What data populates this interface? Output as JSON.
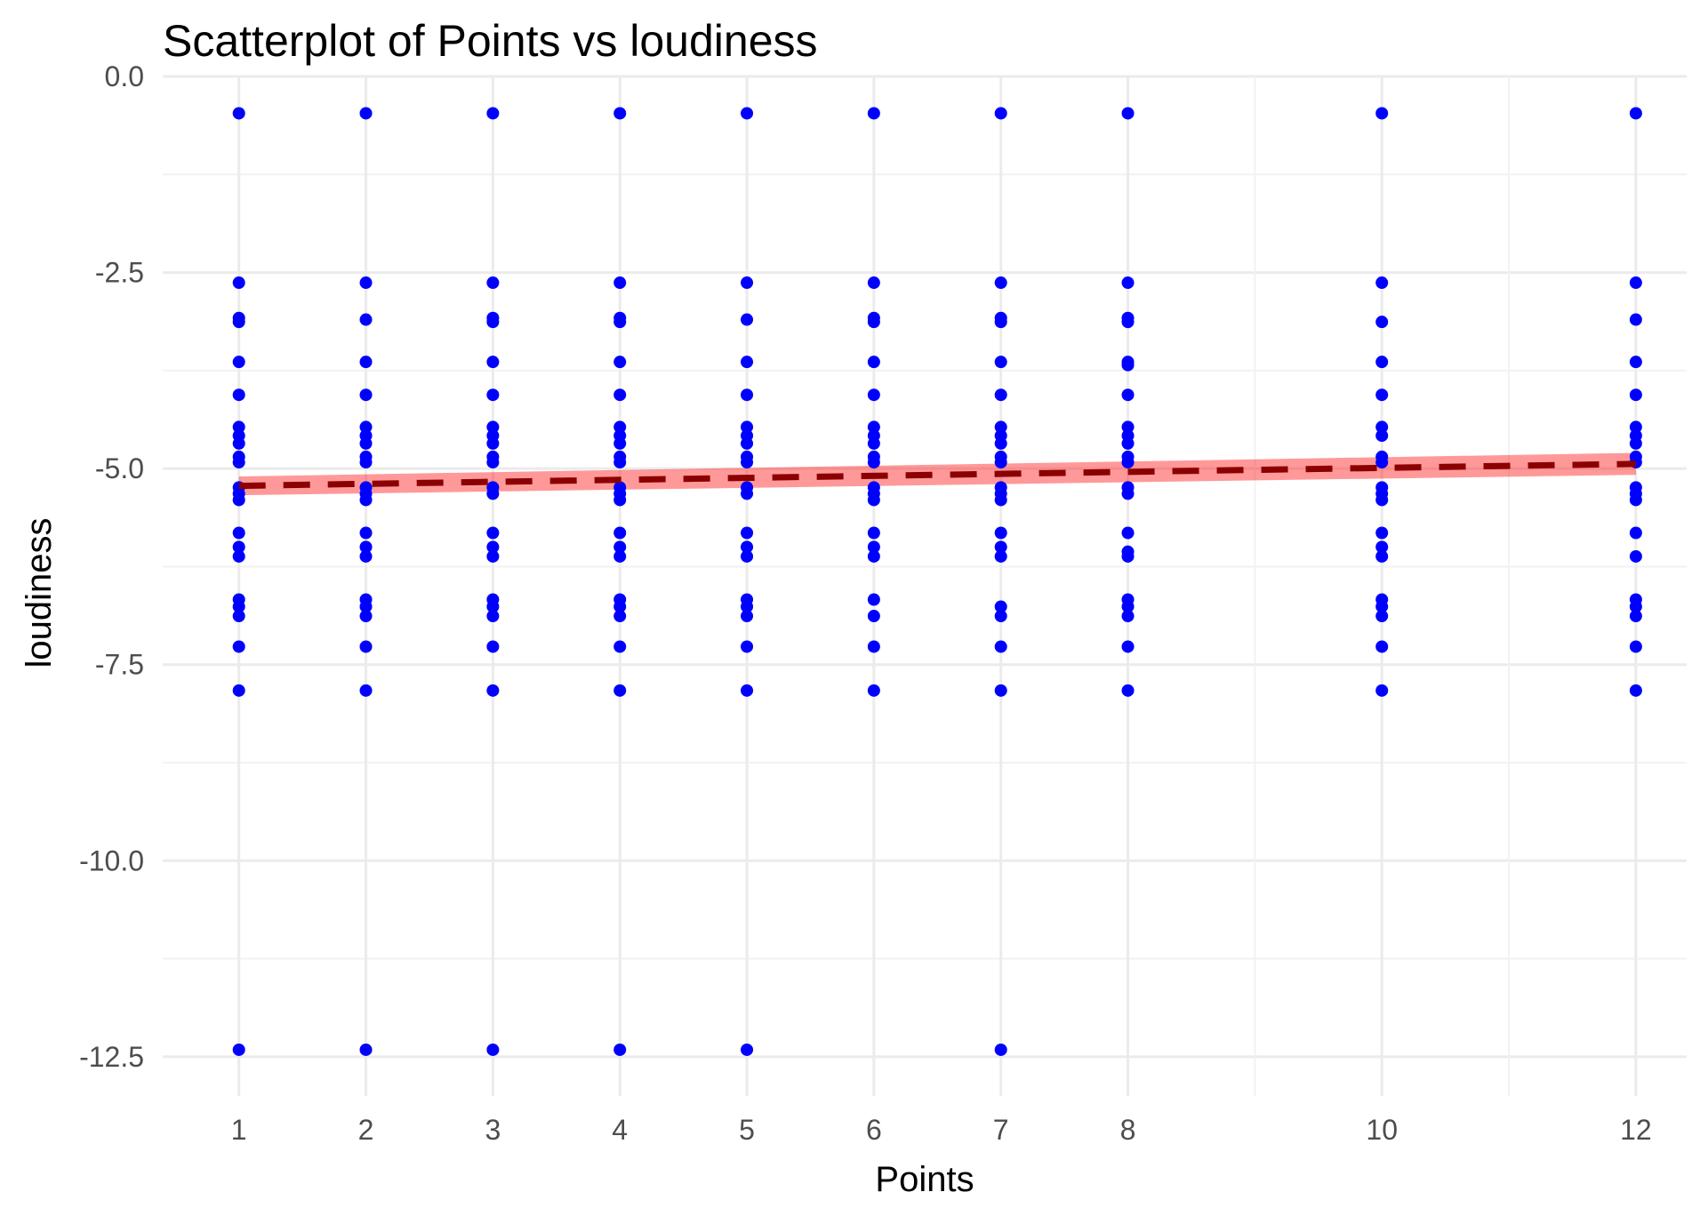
{
  "chart_data": {
    "type": "scatter",
    "title": "Scatterplot of Points vs  loudiness",
    "xlabel": "Points",
    "ylabel": "loudiness",
    "xlim": [
      0.4,
      12.4
    ],
    "ylim": [
      -13.0,
      0.0
    ],
    "x_ticks": [
      1,
      2,
      3,
      4,
      5,
      6,
      7,
      8,
      10,
      12
    ],
    "x_tick_labels": [
      "1",
      "2",
      "3",
      "4",
      "5",
      "6",
      "7",
      "8",
      "10",
      "12"
    ],
    "y_ticks": [
      0.0,
      -2.5,
      -5.0,
      -7.5,
      -10.0,
      -12.5
    ],
    "y_tick_labels": [
      "0.0",
      "-2.5",
      "-5.0",
      "-7.5",
      "-10.0",
      "-12.5"
    ],
    "grid": true,
    "colors": {
      "points": "#0000ff",
      "trend_line": "#8b0000",
      "confidence_band": "#ff0000",
      "grid_major": "#ebebeb",
      "grid_minor": "#f2f2f2"
    },
    "series": [
      {
        "x": 1,
        "y": [
          -0.47,
          -2.63,
          -3.08,
          -3.13,
          -3.64,
          -4.06,
          -4.47,
          -4.58,
          -4.68,
          -4.85,
          -4.92,
          -5.24,
          -5.32,
          -5.4,
          -5.82,
          -6.0,
          -6.12,
          -6.67,
          -6.76,
          -6.88,
          -7.27,
          -7.83,
          -12.41
        ]
      },
      {
        "x": 2,
        "y": [
          -0.47,
          -2.63,
          -3.1,
          -3.64,
          -4.06,
          -4.47,
          -4.58,
          -4.68,
          -4.85,
          -4.92,
          -5.24,
          -5.32,
          -5.4,
          -5.82,
          -6.0,
          -6.12,
          -6.67,
          -6.76,
          -6.88,
          -7.27,
          -7.83,
          -12.41
        ]
      },
      {
        "x": 3,
        "y": [
          -0.47,
          -2.63,
          -3.08,
          -3.13,
          -3.64,
          -4.06,
          -4.47,
          -4.58,
          -4.68,
          -4.85,
          -4.92,
          -5.24,
          -5.32,
          -5.82,
          -6.0,
          -6.12,
          -6.67,
          -6.76,
          -6.88,
          -7.27,
          -7.83,
          -12.41
        ]
      },
      {
        "x": 4,
        "y": [
          -0.47,
          -2.63,
          -3.08,
          -3.13,
          -3.64,
          -4.06,
          -4.47,
          -4.58,
          -4.68,
          -4.85,
          -4.92,
          -5.24,
          -5.32,
          -5.4,
          -5.82,
          -6.0,
          -6.12,
          -6.67,
          -6.76,
          -6.88,
          -7.27,
          -7.83,
          -12.41
        ]
      },
      {
        "x": 5,
        "y": [
          -0.47,
          -2.63,
          -3.1,
          -3.64,
          -4.06,
          -4.47,
          -4.58,
          -4.68,
          -4.85,
          -4.92,
          -5.24,
          -5.32,
          -5.82,
          -6.0,
          -6.12,
          -6.67,
          -6.76,
          -6.88,
          -7.27,
          -7.83,
          -12.41
        ]
      },
      {
        "x": 6,
        "y": [
          -0.47,
          -2.63,
          -3.08,
          -3.13,
          -3.64,
          -4.06,
          -4.47,
          -4.58,
          -4.68,
          -4.85,
          -4.92,
          -5.24,
          -5.32,
          -5.4,
          -5.82,
          -6.0,
          -6.12,
          -6.67,
          -6.88,
          -7.27,
          -7.83
        ]
      },
      {
        "x": 7,
        "y": [
          -0.47,
          -2.63,
          -3.08,
          -3.13,
          -3.64,
          -4.06,
          -4.47,
          -4.58,
          -4.68,
          -4.85,
          -4.92,
          -5.24,
          -5.32,
          -5.4,
          -5.82,
          -6.0,
          -6.12,
          -6.76,
          -6.88,
          -7.27,
          -7.83,
          -12.41
        ]
      },
      {
        "x": 8,
        "y": [
          -0.47,
          -2.63,
          -3.08,
          -3.13,
          -3.64,
          -3.68,
          -4.06,
          -4.47,
          -4.58,
          -4.68,
          -4.85,
          -4.92,
          -5.24,
          -5.32,
          -5.82,
          -6.06,
          -6.12,
          -6.67,
          -6.76,
          -6.88,
          -7.27,
          -7.83
        ]
      },
      {
        "x": 10,
        "y": [
          -0.47,
          -2.63,
          -3.13,
          -3.64,
          -4.06,
          -4.47,
          -4.58,
          -4.85,
          -4.92,
          -5.24,
          -5.32,
          -5.4,
          -5.82,
          -6.0,
          -6.12,
          -6.67,
          -6.76,
          -6.88,
          -7.27,
          -7.83
        ]
      },
      {
        "x": 12,
        "y": [
          -0.47,
          -2.63,
          -3.1,
          -3.64,
          -4.06,
          -4.47,
          -4.58,
          -4.68,
          -4.85,
          -4.92,
          -5.24,
          -5.32,
          -5.4,
          -5.82,
          -6.12,
          -6.67,
          -6.76,
          -6.88,
          -7.27,
          -7.83
        ]
      }
    ],
    "trend_line": {
      "style": "dashed",
      "x": [
        1,
        12
      ],
      "y": [
        -5.22,
        -4.94
      ],
      "band_lower": [
        -5.34,
        -5.08
      ],
      "band_upper": [
        -5.1,
        -4.8
      ]
    }
  }
}
